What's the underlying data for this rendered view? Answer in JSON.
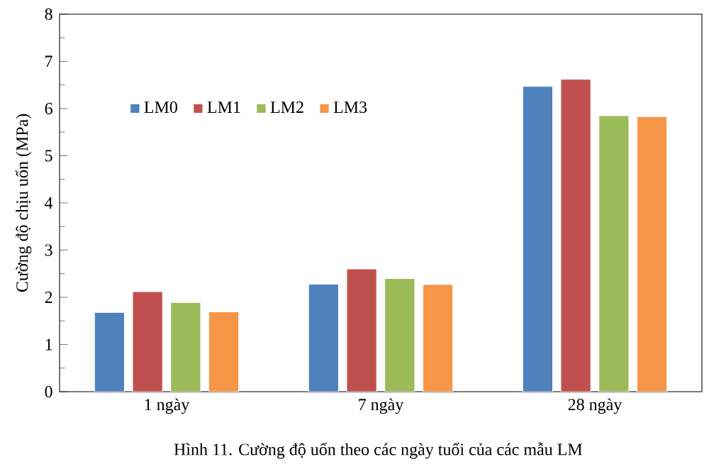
{
  "chart_data": {
    "type": "bar",
    "ylabel": "Cường độ chịu uốn (MPa)",
    "categories": [
      "1 ngày",
      "7 ngày",
      "28 ngày"
    ],
    "series": [
      {
        "name": "LM0",
        "color": "#4f81bd",
        "values": [
          1.68,
          2.28,
          6.47
        ]
      },
      {
        "name": "LM1",
        "color": "#c0504d",
        "values": [
          2.12,
          2.6,
          6.62
        ]
      },
      {
        "name": "LM2",
        "color": "#9bbb59",
        "values": [
          1.89,
          2.4,
          5.85
        ]
      },
      {
        "name": "LM3",
        "color": "#f79646",
        "values": [
          1.69,
          2.27,
          5.83
        ]
      }
    ],
    "ylim": [
      0,
      8
    ],
    "yticks": [
      0,
      1,
      2,
      3,
      4,
      5,
      6,
      7,
      8
    ],
    "grid": false,
    "legend": "top left",
    "annotations": [
      "Hình 11. Cường độ uốn theo các ngày tuổi của các mẫu LM"
    ]
  }
}
